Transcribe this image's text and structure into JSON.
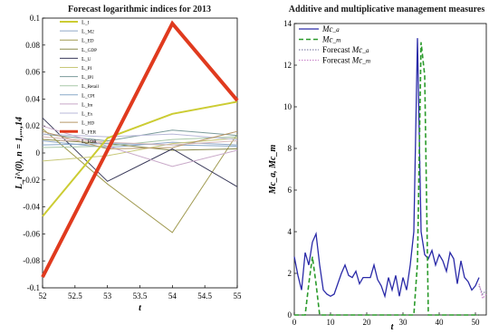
{
  "chart_data": [
    {
      "type": "line",
      "title": "Forecast logarithmic indices for 2013",
      "xlabel": "t",
      "ylabel": "L_i^(0), n = 1,...,14",
      "xlim": [
        52,
        55
      ],
      "ylim": [
        -0.1,
        0.1
      ],
      "x_ticks": [
        "52",
        "52.5",
        "53",
        "53.5",
        "54",
        "54.5",
        "55"
      ],
      "y_ticks": [
        "-0.1",
        "-0.08",
        "-0.06",
        "-0.04",
        "-0.02",
        "0",
        "0.02",
        "0.04",
        "0.06",
        "0.08",
        "0.1"
      ],
      "grid": false,
      "legend_position": "top-left",
      "x": [
        52,
        53,
        54,
        55
      ],
      "series": [
        {
          "name": "L_I",
          "color": "#cccc33",
          "width": 2,
          "values": [
            -0.047,
            0.011,
            0.029,
            0.038
          ]
        },
        {
          "name": "L_M2",
          "color": "#8fa8c8",
          "width": 1,
          "values": [
            0.009,
            0.004,
            0.008,
            0.006
          ]
        },
        {
          "name": "L_ED",
          "color": "#a09a50",
          "width": 1,
          "values": [
            0.018,
            -0.023,
            -0.059,
            0.014
          ]
        },
        {
          "name": "L_GDP",
          "color": "#8a8a4a",
          "width": 1,
          "values": [
            0.01,
            0.007,
            0.002,
            0.003
          ]
        },
        {
          "name": "L_U",
          "color": "#3a3a5a",
          "width": 1,
          "values": [
            0.026,
            -0.021,
            0.003,
            -0.025
          ]
        },
        {
          "name": "L_PI",
          "color": "#c8c878",
          "width": 1,
          "values": [
            -0.006,
            -0.002,
            0.007,
            0.011
          ]
        },
        {
          "name": "L_IPI",
          "color": "#7a9a9a",
          "width": 1,
          "values": [
            0.014,
            0.009,
            0.017,
            0.013
          ]
        },
        {
          "name": "L_Retail",
          "color": "#a8c8a8",
          "width": 1,
          "values": [
            0.004,
            0.005,
            0.01,
            0.012
          ]
        },
        {
          "name": "L_CPI",
          "color": "#88a8c8",
          "width": 1,
          "values": [
            0.006,
            0.007,
            0.006,
            0.005
          ]
        },
        {
          "name": "L_Im",
          "color": "#c8a8c8",
          "width": 1,
          "values": [
            0.02,
            0.005,
            -0.01,
            0.002
          ]
        },
        {
          "name": "L_Ex",
          "color": "#b8b8d8",
          "width": 1,
          "values": [
            0.014,
            0.012,
            0.014,
            0.01
          ]
        },
        {
          "name": "L_HD",
          "color": "#b89868",
          "width": 1,
          "values": [
            0.016,
            0.003,
            0.004,
            0.016
          ]
        },
        {
          "name": "L_FER",
          "color": "#e03a1e",
          "width": 4,
          "values": [
            -0.092,
            0.002,
            0.096,
            0.039
          ]
        },
        {
          "name": "L_FOR",
          "color": "#d8b8b8",
          "width": 1,
          "values": [
            0.012,
            0.008,
            0.006,
            0.009
          ]
        }
      ]
    },
    {
      "type": "line",
      "title": "Additive and multiplicative management measures",
      "xlabel": "t",
      "ylabel": "Mc_a, Mc_m",
      "xlim": [
        0,
        53
      ],
      "ylim": [
        0,
        14
      ],
      "x_ticks": [
        "0",
        "10",
        "20",
        "30",
        "40",
        "50"
      ],
      "y_ticks": [
        "0",
        "2",
        "4",
        "6",
        "8",
        "10",
        "12",
        "14"
      ],
      "grid": false,
      "legend_position": "top-left",
      "series": [
        {
          "name": "Mc_a",
          "color": "#2a2aa8",
          "style": "solid",
          "x": [
            0,
            1,
            2,
            3,
            4,
            5,
            6,
            7,
            8,
            9,
            10,
            11,
            12,
            13,
            14,
            15,
            16,
            17,
            18,
            19,
            20,
            21,
            22,
            23,
            24,
            25,
            26,
            27,
            28,
            29,
            30,
            31,
            32,
            33,
            34,
            35,
            36,
            37,
            38,
            39,
            40,
            41,
            42,
            43,
            44,
            45,
            46,
            47,
            48,
            49,
            50,
            51
          ],
          "values": [
            2.8,
            1.9,
            1.2,
            3.0,
            2.4,
            3.5,
            3.9,
            2.4,
            1.2,
            1.0,
            0.9,
            1.0,
            1.5,
            2.0,
            2.4,
            1.9,
            1.8,
            2.1,
            1.5,
            1.8,
            1.8,
            1.8,
            2.4,
            1.7,
            1.4,
            0.9,
            1.8,
            1.2,
            1.9,
            0.9,
            1.8,
            1.2,
            2.4,
            4.0,
            13.3,
            4.0,
            2.9,
            2.7,
            3.1,
            2.4,
            2.9,
            2.6,
            2.1,
            3.0,
            2.7,
            1.5,
            2.6,
            1.8,
            1.6,
            1.2,
            1.4,
            1.8
          ]
        },
        {
          "name": "Mc_m",
          "color": "#2a9a2a",
          "style": "dashed",
          "x": [
            0,
            3,
            4,
            5,
            6,
            7,
            33,
            34,
            35,
            36,
            37,
            38,
            51
          ],
          "values": [
            0,
            0,
            1.5,
            2.8,
            1.5,
            0,
            0,
            2.5,
            13.1,
            11.5,
            0,
            0,
            0
          ]
        },
        {
          "name": "Forecast Mc_a",
          "color": "#8888aa",
          "style": "dotted",
          "x": [
            51,
            52,
            53
          ],
          "values": [
            1.4,
            1.0,
            1.2
          ]
        },
        {
          "name": "Forecast Mc_m",
          "color": "#cc88cc",
          "style": "dotted",
          "x": [
            51,
            52,
            53
          ],
          "values": [
            1.5,
            0.8,
            1.0
          ]
        }
      ]
    }
  ]
}
